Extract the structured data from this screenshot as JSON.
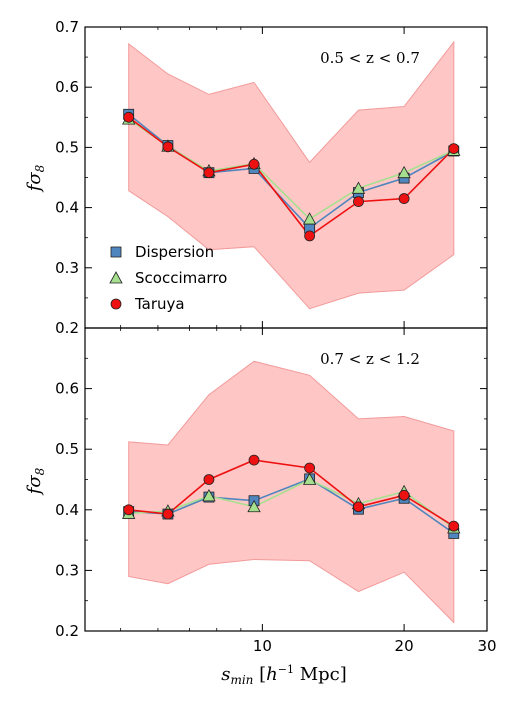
{
  "chart_data": {
    "type": "line",
    "xlabel": "s_min [h^-1 Mpc]",
    "ylabel": "fσ8",
    "xscale": "log",
    "xlim": [
      4.2,
      30
    ],
    "x_ticks": [
      10,
      20,
      30
    ],
    "x_tick_labels": [
      "10",
      "20",
      "30"
    ],
    "legend": {
      "placement": "lower-left of top panel",
      "entries": [
        {
          "name": "Dispersion",
          "marker": "square",
          "color": "#4f86bd"
        },
        {
          "name": "Scoccimarro",
          "marker": "triangle",
          "color": "#a6e08f"
        },
        {
          "name": "Taruya",
          "marker": "circle",
          "color": "#ee1111"
        }
      ]
    },
    "band_color": "#ffb3b3",
    "panels": [
      {
        "annotation": "0.5 < z < 0.7",
        "ylim": [
          0.2,
          0.7
        ],
        "y_ticks": [
          0.2,
          0.3,
          0.4,
          0.5,
          0.6,
          0.7
        ],
        "y_tick_labels": [
          "0.2",
          "0.3",
          "0.4",
          "0.5",
          "0.6",
          "0.7"
        ],
        "x": [
          5.2,
          6.3,
          7.7,
          9.6,
          12.6,
          16,
          20,
          25.5
        ],
        "band_upper": [
          0.672,
          0.622,
          0.588,
          0.608,
          0.475,
          0.562,
          0.568,
          0.675
        ],
        "band_lower": [
          0.428,
          0.385,
          0.33,
          0.335,
          0.232,
          0.258,
          0.263,
          0.322
        ],
        "series": [
          {
            "name": "Dispersion",
            "values": [
              0.555,
              0.503,
              0.458,
              0.465,
              0.366,
              0.425,
              0.449,
              0.494
            ]
          },
          {
            "name": "Scoccimarro",
            "values": [
              0.547,
              0.502,
              0.461,
              0.473,
              0.381,
              0.432,
              0.458,
              0.495
            ]
          },
          {
            "name": "Taruya",
            "values": [
              0.55,
              0.501,
              0.458,
              0.472,
              0.353,
              0.41,
              0.415,
              0.498
            ]
          }
        ]
      },
      {
        "annotation": "0.7 < z < 1.2",
        "ylim": [
          0.2,
          0.7
        ],
        "y_ticks": [
          0.2,
          0.3,
          0.4,
          0.5,
          0.6
        ],
        "y_tick_labels": [
          "0.2",
          "0.3",
          "0.4",
          "0.5",
          "0.6"
        ],
        "x": [
          5.2,
          6.3,
          7.7,
          9.6,
          12.6,
          16,
          20,
          25.5
        ],
        "band_upper": [
          0.512,
          0.507,
          0.59,
          0.645,
          0.622,
          0.55,
          0.554,
          0.53
        ],
        "band_lower": [
          0.29,
          0.278,
          0.31,
          0.318,
          0.316,
          0.265,
          0.297,
          0.214
        ],
        "series": [
          {
            "name": "Dispersion",
            "values": [
              0.397,
              0.393,
              0.421,
              0.415,
              0.451,
              0.401,
              0.419,
              0.361
            ]
          },
          {
            "name": "Scoccimarro",
            "values": [
              0.394,
              0.398,
              0.423,
              0.405,
              0.45,
              0.41,
              0.43,
              0.37
            ]
          },
          {
            "name": "Taruya",
            "values": [
              0.4,
              0.393,
              0.45,
              0.482,
              0.469,
              0.405,
              0.424,
              0.373
            ]
          }
        ]
      }
    ]
  }
}
